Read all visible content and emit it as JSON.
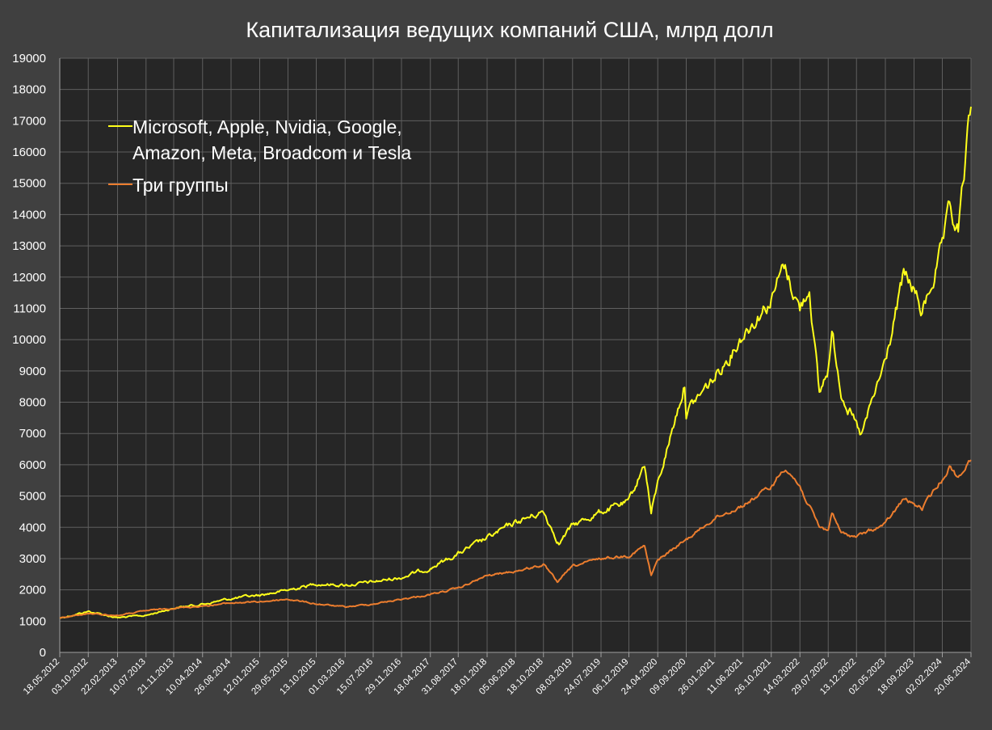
{
  "chart_data": {
    "type": "line",
    "title": "Капитализация ведущих компаний США, млрд долл",
    "xlabel": "",
    "ylabel": "",
    "ylim": [
      0,
      19000
    ],
    "yticks": [
      0,
      1000,
      2000,
      3000,
      4000,
      5000,
      6000,
      7000,
      8000,
      9000,
      10000,
      11000,
      12000,
      13000,
      14000,
      15000,
      16000,
      17000,
      18000,
      19000
    ],
    "x_range": [
      "18.05.2012",
      "20.06.2024"
    ],
    "xticks": [
      "18.05.2012",
      "03.10.2012",
      "22.02.2013",
      "10.07.2013",
      "21.11.2013",
      "10.04.2014",
      "26.08.2014",
      "12.01.2015",
      "29.05.2015",
      "13.10.2015",
      "01.03.2016",
      "15.07.2016",
      "29.11.2016",
      "18.04.2017",
      "31.08.2017",
      "18.01.2018",
      "05.06.2018",
      "18.10.2018",
      "08.03.2019",
      "24.07.2019",
      "06.12.2019",
      "24.04.2020",
      "09.09.2020",
      "26.01.2021",
      "11.06.2021",
      "26.10.2021",
      "14.03.2022",
      "29.07.2022",
      "13.12.2022",
      "02.05.2023",
      "18.09.2023",
      "02.02.2024",
      "20.06.2024"
    ],
    "grid": true,
    "legend_position": "top-left",
    "background": "#262626",
    "series": [
      {
        "name_lines": [
          "Microsoft, Apple, Nvidia, Google,",
          "Amazon, Meta, Broadcom и Tesla"
        ],
        "color": "#ffff1a",
        "points": [
          [
            "18.05.2012",
            1100
          ],
          [
            "03.10.2012",
            1310
          ],
          [
            "22.02.2013",
            1110
          ],
          [
            "10.07.2013",
            1180
          ],
          [
            "21.11.2013",
            1420
          ],
          [
            "10.04.2014",
            1540
          ],
          [
            "26.08.2014",
            1720
          ],
          [
            "12.01.2015",
            1830
          ],
          [
            "29.05.2015",
            1990
          ],
          [
            "13.10.2015",
            2200
          ],
          [
            "01.03.2016",
            2150
          ],
          [
            "15.07.2016",
            2250
          ],
          [
            "29.11.2016",
            2400
          ],
          [
            "18.04.2017",
            2700
          ],
          [
            "31.08.2017",
            3150
          ],
          [
            "18.01.2018",
            3650
          ],
          [
            "05.06.2018",
            4150
          ],
          [
            "18.10.2018",
            4500
          ],
          [
            "01.01.2019",
            3500
          ],
          [
            "08.03.2019",
            4050
          ],
          [
            "24.07.2019",
            4500
          ],
          [
            "06.12.2019",
            4800
          ],
          [
            "20.02.2020",
            6050
          ],
          [
            "23.03.2020",
            4450
          ],
          [
            "24.04.2020",
            5400
          ],
          [
            "01.09.2020",
            8600
          ],
          [
            "09.09.2020",
            7700
          ],
          [
            "26.01.2021",
            8800
          ],
          [
            "11.06.2021",
            10200
          ],
          [
            "26.10.2021",
            11300
          ],
          [
            "27.12.2021",
            12350
          ],
          [
            "14.03.2022",
            11000
          ],
          [
            "29.04.2022",
            11700
          ],
          [
            "16.06.2022",
            8200
          ],
          [
            "29.07.2022",
            9100
          ],
          [
            "16.08.2022",
            10200
          ],
          [
            "30.09.2022",
            8400
          ],
          [
            "13.12.2022",
            7200
          ],
          [
            "05.01.2023",
            6900
          ],
          [
            "02.05.2023",
            9300
          ],
          [
            "30.07.2023",
            12000
          ],
          [
            "18.09.2023",
            11600
          ],
          [
            "27.10.2023",
            10800
          ],
          [
            "02.02.2024",
            12900
          ],
          [
            "08.03.2024",
            14000
          ],
          [
            "19.04.2024",
            13400
          ],
          [
            "20.06.2024",
            17450
          ]
        ]
      },
      {
        "name_lines": [
          "Три группы"
        ],
        "color": "#ec7d2e",
        "points": [
          [
            "18.05.2012",
            1100
          ],
          [
            "03.10.2012",
            1240
          ],
          [
            "22.02.2013",
            1180
          ],
          [
            "10.07.2013",
            1330
          ],
          [
            "21.11.2013",
            1420
          ],
          [
            "10.04.2014",
            1480
          ],
          [
            "26.08.2014",
            1580
          ],
          [
            "12.01.2015",
            1620
          ],
          [
            "29.05.2015",
            1700
          ],
          [
            "13.10.2015",
            1550
          ],
          [
            "01.03.2016",
            1450
          ],
          [
            "15.07.2016",
            1550
          ],
          [
            "29.11.2016",
            1700
          ],
          [
            "18.04.2017",
            1850
          ],
          [
            "31.08.2017",
            2050
          ],
          [
            "18.01.2018",
            2450
          ],
          [
            "05.06.2018",
            2600
          ],
          [
            "18.10.2018",
            2800
          ],
          [
            "24.12.2018",
            2250
          ],
          [
            "08.03.2019",
            2750
          ],
          [
            "24.07.2019",
            3000
          ],
          [
            "06.12.2019",
            3100
          ],
          [
            "20.02.2020",
            3400
          ],
          [
            "23.03.2020",
            2450
          ],
          [
            "24.04.2020",
            2950
          ],
          [
            "09.09.2020",
            3600
          ],
          [
            "26.01.2021",
            4300
          ],
          [
            "11.06.2021",
            4700
          ],
          [
            "26.10.2021",
            5300
          ],
          [
            "03.01.2022",
            5950
          ],
          [
            "14.03.2022",
            5300
          ],
          [
            "16.06.2022",
            4000
          ],
          [
            "29.07.2022",
            3900
          ],
          [
            "16.08.2022",
            4500
          ],
          [
            "30.09.2022",
            3800
          ],
          [
            "13.12.2022",
            3700
          ],
          [
            "02.05.2023",
            4100
          ],
          [
            "30.07.2023",
            4900
          ],
          [
            "27.10.2023",
            4600
          ],
          [
            "02.02.2024",
            5550
          ],
          [
            "08.03.2024",
            5950
          ],
          [
            "19.04.2024",
            5600
          ],
          [
            "20.06.2024",
            6150
          ]
        ]
      }
    ]
  }
}
